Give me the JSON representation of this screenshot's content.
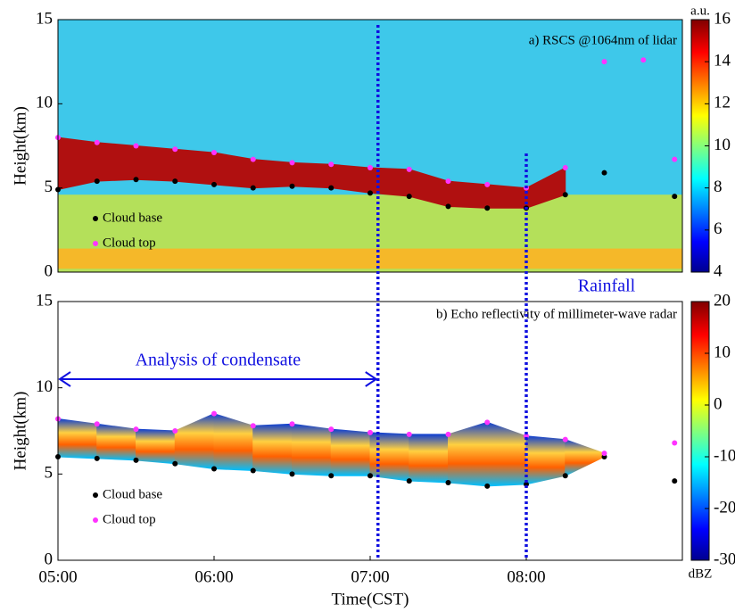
{
  "chart_data": [
    {
      "type": "heatmap-profile",
      "title": "a) RSCS @1064nm of lidar",
      "colorbar_label": "a.u.",
      "ylabel": "Height(km)",
      "annotations": [
        "Rainfall",
        "Analysis of condensate"
      ],
      "event_times": [
        7.05,
        8.0
      ],
      "analysis_span": [
        5.0,
        7.05
      ],
      "xlim": [
        5,
        9
      ],
      "ylim": [
        0,
        15
      ],
      "yticks": [
        0,
        5,
        10,
        15
      ],
      "clim": [
        4,
        16
      ],
      "cticks": [
        4,
        6,
        8,
        10,
        12,
        14,
        16
      ],
      "x": [
        5.0,
        5.25,
        5.5,
        5.75,
        6.0,
        6.25,
        6.5,
        6.75,
        7.0,
        7.25,
        7.5,
        7.75,
        8.0,
        8.25,
        8.5,
        8.75,
        8.95
      ],
      "series": [
        {
          "name": "Cloud base",
          "color": "#000000",
          "values": [
            4.9,
            5.4,
            5.5,
            5.4,
            5.2,
            5.0,
            5.1,
            5.0,
            4.7,
            4.5,
            3.9,
            3.8,
            3.8,
            4.6,
            5.9,
            null,
            4.5
          ]
        },
        {
          "name": "Cloud top",
          "color": "#ff33ff",
          "values": [
            8.0,
            7.7,
            7.5,
            7.3,
            7.1,
            6.7,
            6.5,
            6.4,
            6.2,
            6.1,
            5.4,
            5.2,
            5.0,
            6.2,
            12.5,
            12.6,
            6.7
          ]
        }
      ]
    },
    {
      "type": "heatmap-profile",
      "title": "b) Echo reflectivity of millimeter-wave radar",
      "colorbar_label": "dBZ",
      "ylabel": "Height(km)",
      "xlabel": "Time(CST)",
      "xlim": [
        5,
        9
      ],
      "ylim": [
        0,
        15
      ],
      "yticks": [
        0,
        5,
        10,
        15
      ],
      "clim": [
        -30,
        20
      ],
      "cticks": [
        -30,
        -20,
        -10,
        0,
        10,
        20
      ],
      "xticks": [
        {
          "value": 5,
          "label": "05:00"
        },
        {
          "value": 6,
          "label": "06:00"
        },
        {
          "value": 7,
          "label": "07:00"
        },
        {
          "value": 8,
          "label": "08:00"
        }
      ],
      "x": [
        5.0,
        5.25,
        5.5,
        5.75,
        6.0,
        6.25,
        6.5,
        6.75,
        7.0,
        7.25,
        7.5,
        7.75,
        8.0,
        8.25,
        8.5,
        8.75,
        8.95
      ],
      "series": [
        {
          "name": "Cloud base",
          "color": "#000000",
          "values": [
            6.0,
            5.9,
            5.8,
            5.6,
            5.3,
            5.2,
            5.0,
            4.9,
            4.9,
            4.6,
            4.5,
            4.3,
            4.4,
            4.9,
            6.0,
            null,
            4.6
          ]
        },
        {
          "name": "Cloud top",
          "color": "#ff33ff",
          "values": [
            8.2,
            7.9,
            7.6,
            7.5,
            8.5,
            7.8,
            7.9,
            7.6,
            7.4,
            7.3,
            7.3,
            8.0,
            7.2,
            7.0,
            6.2,
            null,
            6.8
          ]
        }
      ]
    }
  ]
}
